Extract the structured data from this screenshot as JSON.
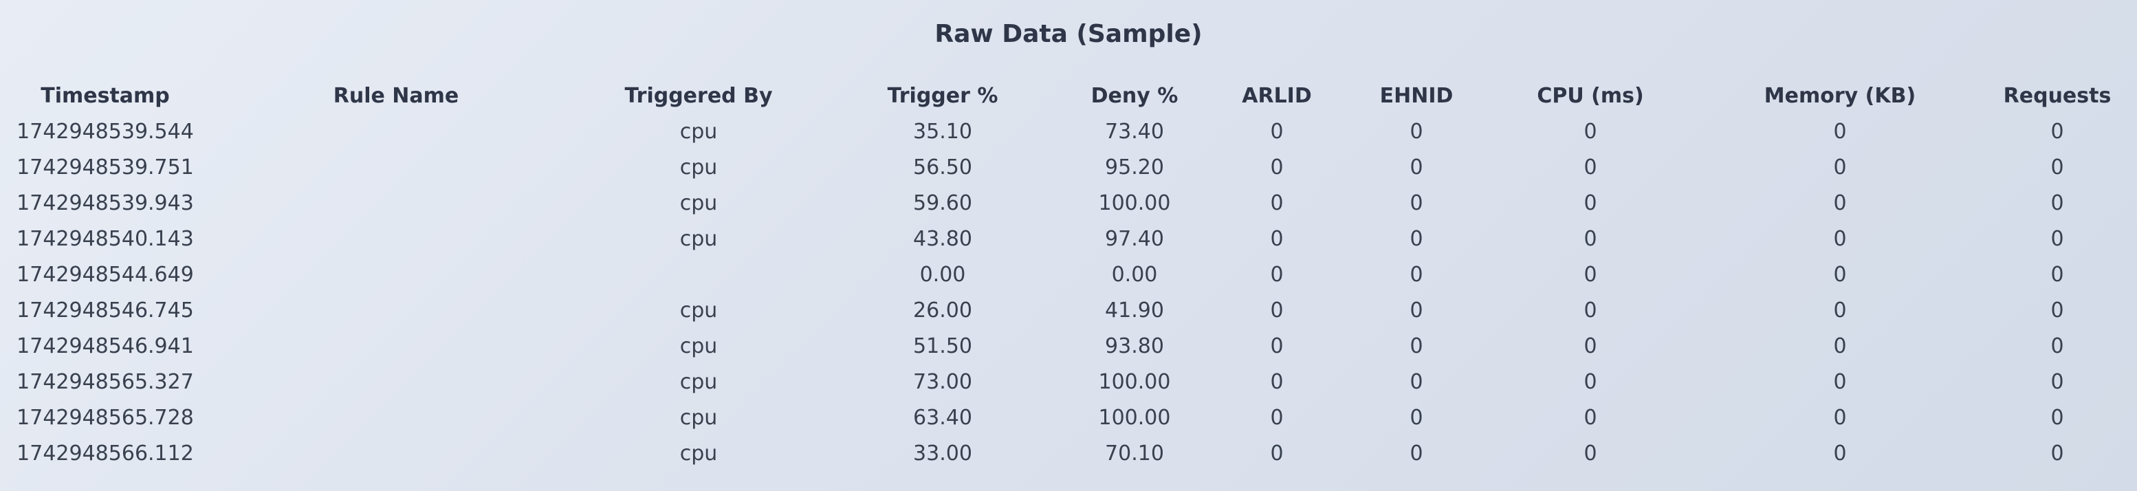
{
  "page": {
    "title": "Raw Data (Sample)"
  },
  "table": {
    "columns": [
      "Timestamp",
      "Rule Name",
      "Triggered By",
      "Trigger %",
      "Deny %",
      "ARLID",
      "EHNID",
      "CPU (ms)",
      "Memory (KB)",
      "Requests"
    ],
    "rows": [
      [
        "1742948539.544",
        "",
        "cpu",
        "35.10",
        "73.40",
        "0",
        "0",
        "0",
        "0",
        "0"
      ],
      [
        "1742948539.751",
        "",
        "cpu",
        "56.50",
        "95.20",
        "0",
        "0",
        "0",
        "0",
        "0"
      ],
      [
        "1742948539.943",
        "",
        "cpu",
        "59.60",
        "100.00",
        "0",
        "0",
        "0",
        "0",
        "0"
      ],
      [
        "1742948540.143",
        "",
        "cpu",
        "43.80",
        "97.40",
        "0",
        "0",
        "0",
        "0",
        "0"
      ],
      [
        "1742948544.649",
        "",
        "",
        "0.00",
        "0.00",
        "0",
        "0",
        "0",
        "0",
        "0"
      ],
      [
        "1742948546.745",
        "",
        "cpu",
        "26.00",
        "41.90",
        "0",
        "0",
        "0",
        "0",
        "0"
      ],
      [
        "1742948546.941",
        "",
        "cpu",
        "51.50",
        "93.80",
        "0",
        "0",
        "0",
        "0",
        "0"
      ],
      [
        "1742948565.327",
        "",
        "cpu",
        "73.00",
        "100.00",
        "0",
        "0",
        "0",
        "0",
        "0"
      ],
      [
        "1742948565.728",
        "",
        "cpu",
        "63.40",
        "100.00",
        "0",
        "0",
        "0",
        "0",
        "0"
      ],
      [
        "1742948566.112",
        "",
        "cpu",
        "33.00",
        "70.10",
        "0",
        "0",
        "0",
        "0",
        "0"
      ]
    ]
  }
}
